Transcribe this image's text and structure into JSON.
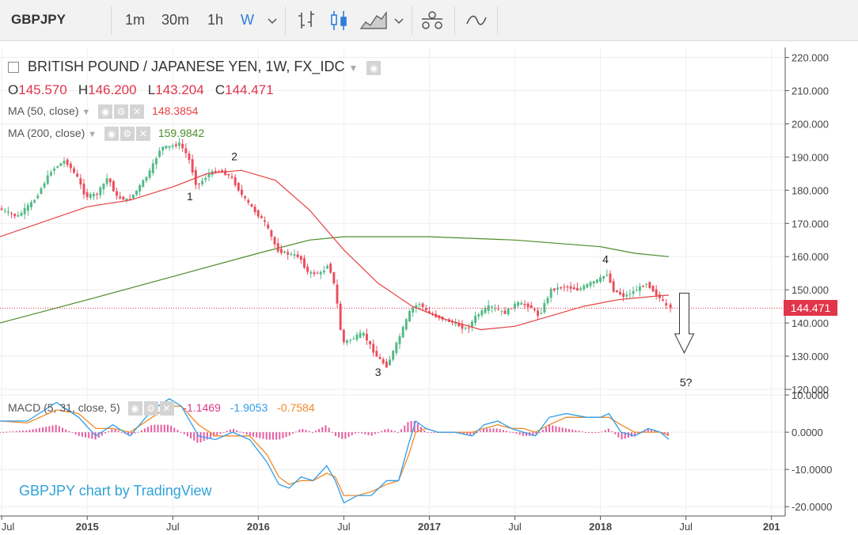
{
  "toolbar": {
    "symbol": "GBPJPY",
    "intervals": [
      "1m",
      "30m",
      "1h",
      "W"
    ],
    "active_interval": "W",
    "tools": [
      "bar-style-icon",
      "candle-style-icon",
      "area-style-icon",
      "compare-icon",
      "indicators-icon"
    ]
  },
  "legend": {
    "title": "BRITISH POUND / JAPANESE YEN, 1W, FX_IDC",
    "ohlc": {
      "o_label": "O",
      "o": "145.570",
      "h_label": "H",
      "h": "146.200",
      "l_label": "L",
      "l": "143.204",
      "c_label": "C",
      "c": "144.471"
    },
    "ma50_label": "MA (50, close)",
    "ma50_value": "148.3854",
    "ma200_label": "MA (200, close)",
    "ma200_value": "159.9842",
    "macd_label": "MACD (5, 31, close, 5)",
    "macd_hist": "-1.1469",
    "macd_line": "-1.9053",
    "macd_signal": "-0.7584"
  },
  "watermark": "GBPJPY chart by TradingView",
  "last_price_label": "144.471",
  "colors": {
    "up": "#53b987",
    "down": "#eb4d5c",
    "ma50": "#e84040",
    "ma200": "#4c8c2b",
    "macd": "#2f9ee8",
    "signal": "#f08a2a",
    "hist": "#e0358a",
    "price_line": "#e0354b",
    "watermark": "#2fa3d6"
  },
  "chart_data": [
    {
      "type": "candlestick",
      "title": "BRITISH POUND / JAPANESE YEN, 1W, FX_IDC",
      "y_ticks": [
        "220.000",
        "210.000",
        "200.000",
        "190.000",
        "180.000",
        "170.000",
        "160.000",
        "150.000",
        "140.000",
        "130.000",
        "120.000"
      ],
      "ylim": [
        120,
        223
      ],
      "x_ticks": [
        "Jul",
        "2015",
        "Jul",
        "2016",
        "Jul",
        "2017",
        "Jul",
        "2018",
        "Jul",
        "201"
      ],
      "x_tick_times": [
        2014.5,
        2015.0,
        2015.5,
        2016.0,
        2016.5,
        2017.0,
        2017.5,
        2018.0,
        2018.5,
        2019.0
      ],
      "xlim": [
        2014.49,
        2019.08
      ],
      "price_path": [
        [
          2014.49,
          174.5
        ],
        [
          2014.6,
          172
        ],
        [
          2014.7,
          177
        ],
        [
          2014.8,
          186
        ],
        [
          2014.88,
          189
        ],
        [
          2014.95,
          184
        ],
        [
          2015.0,
          178
        ],
        [
          2015.07,
          179
        ],
        [
          2015.13,
          184
        ],
        [
          2015.18,
          178
        ],
        [
          2015.25,
          177
        ],
        [
          2015.3,
          180
        ],
        [
          2015.38,
          186
        ],
        [
          2015.44,
          193
        ],
        [
          2015.48,
          193
        ],
        [
          2015.55,
          194
        ],
        [
          2015.6,
          190
        ],
        [
          2015.65,
          181
        ],
        [
          2015.72,
          185
        ],
        [
          2015.78,
          186
        ],
        [
          2015.85,
          184
        ],
        [
          2015.92,
          178
        ],
        [
          2016.0,
          173
        ],
        [
          2016.05,
          170
        ],
        [
          2016.12,
          162
        ],
        [
          2016.17,
          161
        ],
        [
          2016.25,
          160
        ],
        [
          2016.3,
          155
        ],
        [
          2016.38,
          155
        ],
        [
          2016.42,
          158
        ],
        [
          2016.46,
          150
        ],
        [
          2016.5,
          134
        ],
        [
          2016.55,
          135
        ],
        [
          2016.62,
          137
        ],
        [
          2016.7,
          130
        ],
        [
          2016.76,
          127
        ],
        [
          2016.82,
          134
        ],
        [
          2016.9,
          144
        ],
        [
          2016.95,
          146
        ],
        [
          2017.0,
          143
        ],
        [
          2017.05,
          142
        ],
        [
          2017.15,
          140
        ],
        [
          2017.23,
          138
        ],
        [
          2017.28,
          142
        ],
        [
          2017.36,
          145
        ],
        [
          2017.45,
          143
        ],
        [
          2017.52,
          146
        ],
        [
          2017.6,
          145
        ],
        [
          2017.65,
          142
        ],
        [
          2017.72,
          150
        ],
        [
          2017.8,
          151
        ],
        [
          2017.88,
          150
        ],
        [
          2017.95,
          152
        ],
        [
          2018.0,
          153
        ],
        [
          2018.05,
          155
        ],
        [
          2018.08,
          150
        ],
        [
          2018.15,
          148
        ],
        [
          2018.22,
          150
        ],
        [
          2018.28,
          152
        ],
        [
          2018.33,
          149
        ],
        [
          2018.38,
          146
        ],
        [
          2018.4,
          144.5
        ]
      ],
      "last_candle": {
        "o": 145.57,
        "h": 146.2,
        "l": 143.204,
        "c": 144.471
      },
      "series": [
        {
          "name": "MA (50, close)",
          "x": [
            2014.49,
            2015.0,
            2015.25,
            2015.5,
            2015.7,
            2015.9,
            2016.1,
            2016.3,
            2016.5,
            2016.7,
            2016.9,
            2017.1,
            2017.3,
            2017.5,
            2017.7,
            2017.9,
            2018.1,
            2018.3,
            2018.4
          ],
          "values": [
            166,
            175,
            177,
            181,
            185,
            186,
            183,
            174,
            162,
            152,
            145,
            141,
            138,
            139,
            142,
            145,
            147,
            148,
            148.39
          ]
        },
        {
          "name": "MA (200, close)",
          "x": [
            2014.49,
            2015.0,
            2015.5,
            2016.0,
            2016.3,
            2016.5,
            2017.0,
            2017.5,
            2018.0,
            2018.2,
            2018.4
          ],
          "values": [
            140,
            147,
            154,
            161,
            165,
            166,
            166,
            165,
            163,
            161,
            159.98
          ]
        }
      ],
      "annotations": [
        {
          "text": "1",
          "x": 2015.6,
          "y": 177
        },
        {
          "text": "2",
          "x": 2015.86,
          "y": 189
        },
        {
          "text": "3",
          "x": 2016.7,
          "y": 124
        },
        {
          "text": "4",
          "x": 2018.03,
          "y": 158
        },
        {
          "text": "5?",
          "x": 2018.5,
          "y": 121
        }
      ],
      "arrow": {
        "x": 2018.49,
        "y_from": 149,
        "y_to": 131,
        "direction": "down"
      }
    },
    {
      "type": "line",
      "title": "MACD (5, 31, close, 5)",
      "y_ticks": [
        "10.0000",
        "0.0000",
        "-10.0000",
        "-20.0000"
      ],
      "ylim": [
        -22.5,
        11.5
      ],
      "macd_path": [
        [
          2014.49,
          3
        ],
        [
          2014.65,
          3
        ],
        [
          2014.82,
          8
        ],
        [
          2014.95,
          4
        ],
        [
          2015.05,
          -1
        ],
        [
          2015.15,
          2
        ],
        [
          2015.25,
          -1
        ],
        [
          2015.38,
          6
        ],
        [
          2015.48,
          9
        ],
        [
          2015.55,
          7
        ],
        [
          2015.65,
          -1
        ],
        [
          2015.75,
          -2
        ],
        [
          2015.85,
          0
        ],
        [
          2015.95,
          -2
        ],
        [
          2016.05,
          -8
        ],
        [
          2016.12,
          -14
        ],
        [
          2016.18,
          -15
        ],
        [
          2016.25,
          -12
        ],
        [
          2016.32,
          -13
        ],
        [
          2016.4,
          -9
        ],
        [
          2016.45,
          -13
        ],
        [
          2016.5,
          -19
        ],
        [
          2016.58,
          -17
        ],
        [
          2016.66,
          -17
        ],
        [
          2016.75,
          -13
        ],
        [
          2016.82,
          -13
        ],
        [
          2016.88,
          -3
        ],
        [
          2016.92,
          3
        ],
        [
          2016.98,
          1
        ],
        [
          2017.05,
          0
        ],
        [
          2017.15,
          0
        ],
        [
          2017.25,
          -1
        ],
        [
          2017.32,
          2
        ],
        [
          2017.4,
          3
        ],
        [
          2017.48,
          1
        ],
        [
          2017.55,
          0
        ],
        [
          2017.62,
          -1
        ],
        [
          2017.7,
          4
        ],
        [
          2017.8,
          5
        ],
        [
          2017.92,
          4
        ],
        [
          2018.0,
          4
        ],
        [
          2018.05,
          5
        ],
        [
          2018.12,
          0
        ],
        [
          2018.2,
          -1
        ],
        [
          2018.28,
          1
        ],
        [
          2018.35,
          0
        ],
        [
          2018.4,
          -1.9
        ]
      ],
      "signal_path": [
        [
          2014.49,
          3
        ],
        [
          2014.65,
          2.5
        ],
        [
          2014.82,
          6
        ],
        [
          2014.95,
          5
        ],
        [
          2015.05,
          1
        ],
        [
          2015.15,
          1
        ],
        [
          2015.25,
          0
        ],
        [
          2015.38,
          4
        ],
        [
          2015.48,
          7
        ],
        [
          2015.55,
          7
        ],
        [
          2015.65,
          2
        ],
        [
          2015.75,
          -1
        ],
        [
          2015.85,
          -1
        ],
        [
          2015.95,
          -1
        ],
        [
          2016.05,
          -6
        ],
        [
          2016.12,
          -12
        ],
        [
          2016.18,
          -14
        ],
        [
          2016.25,
          -13
        ],
        [
          2016.32,
          -13
        ],
        [
          2016.4,
          -11
        ],
        [
          2016.45,
          -12
        ],
        [
          2016.5,
          -17
        ],
        [
          2016.58,
          -17
        ],
        [
          2016.66,
          -16
        ],
        [
          2016.75,
          -14
        ],
        [
          2016.82,
          -13
        ],
        [
          2016.88,
          -6
        ],
        [
          2016.92,
          0
        ],
        [
          2016.98,
          1
        ],
        [
          2017.05,
          0
        ],
        [
          2017.15,
          0
        ],
        [
          2017.25,
          0
        ],
        [
          2017.32,
          1
        ],
        [
          2017.4,
          2
        ],
        [
          2017.48,
          1
        ],
        [
          2017.55,
          1
        ],
        [
          2017.62,
          0
        ],
        [
          2017.7,
          2
        ],
        [
          2017.8,
          4
        ],
        [
          2017.92,
          4
        ],
        [
          2018.0,
          4
        ],
        [
          2018.05,
          4
        ],
        [
          2018.12,
          2
        ],
        [
          2018.2,
          0
        ],
        [
          2018.28,
          0
        ],
        [
          2018.35,
          0
        ],
        [
          2018.4,
          -0.76
        ]
      ]
    }
  ]
}
